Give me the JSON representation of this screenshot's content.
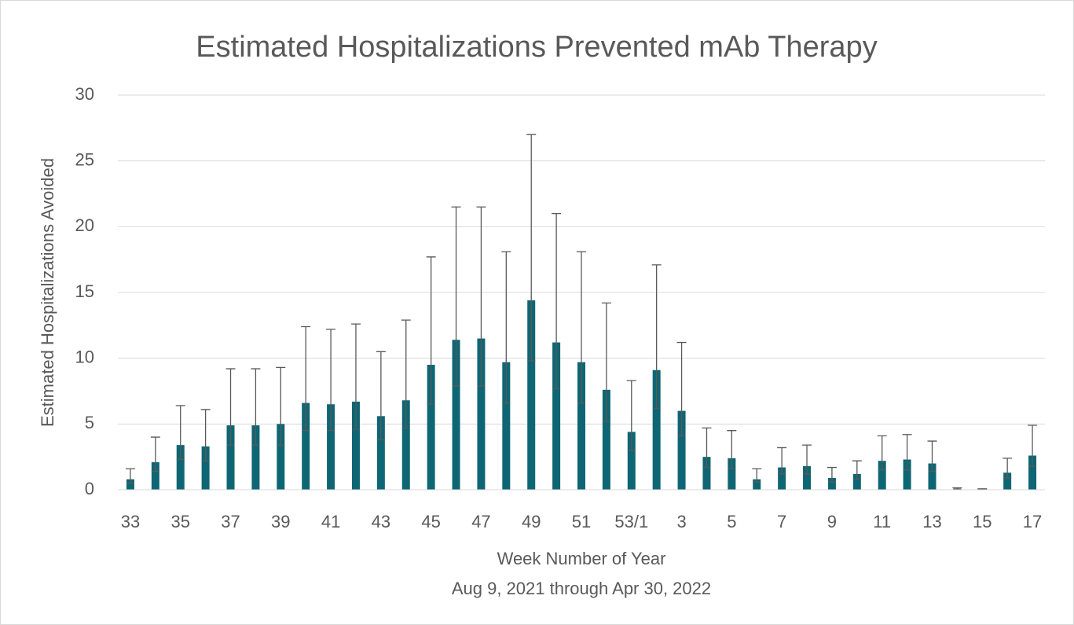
{
  "chart_data": {
    "type": "bar",
    "title": "Estimated Hospitalizations Prevented mAb Therapy",
    "y_label": "Estimated Hospitalizations Avoided",
    "x_label": "Week Number of Year",
    "subtitle": "Aug 9, 2021 through Apr 30, 2022",
    "categories": [
      "33",
      null,
      "35",
      null,
      "37",
      null,
      "39",
      null,
      "41",
      null,
      "43",
      null,
      "45",
      null,
      "47",
      null,
      "49",
      null,
      "51",
      null,
      "53/1",
      null,
      "3",
      null,
      "5",
      null,
      "7",
      null,
      "9",
      null,
      "11",
      null,
      "13",
      null,
      "15",
      null,
      "17"
    ],
    "series": [
      {
        "color": "#0e6674",
        "values": [
          0.8,
          2.1,
          3.4,
          3.3,
          4.9,
          4.9,
          5.0,
          6.6,
          6.5,
          6.7,
          5.6,
          6.8,
          9.5,
          11.4,
          11.5,
          9.7,
          14.4,
          11.2,
          9.7,
          7.6,
          4.4,
          9.1,
          6.0,
          2.5,
          2.4,
          0.8,
          1.7,
          1.8,
          0.9,
          1.2,
          2.2,
          2.3,
          2.0,
          0.1,
          0.05,
          1.3,
          2.6
        ],
        "error_plus": [
          0.8,
          1.9,
          3.0,
          2.8,
          4.3,
          4.3,
          4.3,
          5.8,
          5.7,
          5.9,
          4.9,
          6.1,
          8.2,
          10.1,
          10.0,
          8.4,
          12.6,
          9.8,
          8.4,
          6.6,
          3.9,
          8.0,
          5.2,
          2.2,
          2.1,
          0.8,
          1.5,
          1.6,
          0.8,
          1.0,
          1.9,
          1.9,
          1.7,
          0.05,
          0.02,
          1.1,
          2.3
        ],
        "error_minus": [
          0.3,
          0.7,
          1.1,
          1.1,
          1.5,
          1.5,
          1.6,
          2.1,
          2.0,
          2.1,
          1.8,
          2.1,
          3.0,
          3.5,
          3.6,
          3.1,
          4.6,
          3.5,
          3.1,
          2.4,
          1.4,
          2.9,
          1.9,
          0.8,
          0.8,
          0.2,
          0.5,
          0.6,
          0.3,
          0.4,
          0.7,
          0.8,
          0.6,
          0.05,
          0.02,
          0.4,
          0.8
        ],
        "error_color": "#595959"
      }
    ],
    "ylim": [
      0,
      30
    ],
    "yticks": [
      0,
      5,
      10,
      15,
      20,
      25,
      30
    ],
    "grid": true
  }
}
